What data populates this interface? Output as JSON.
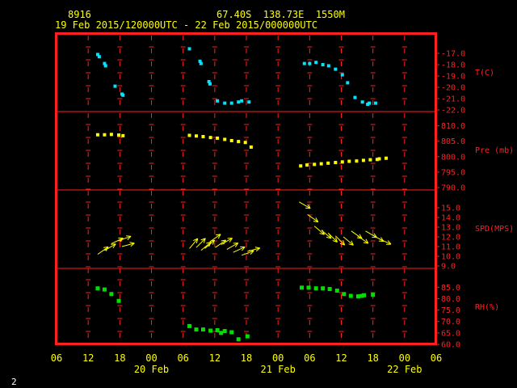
{
  "header": {
    "station": "8916",
    "location": "67.40S  138.73E  1550M",
    "period": "19 Feb 2015/120000UTC - 22 Feb 2015/000000UTC"
  },
  "footer": {
    "page": "2"
  },
  "colors": {
    "frame": "#ff2020",
    "temp": "#00e5ff",
    "pressure": "#ffff00",
    "wind": "#ffff00",
    "rh": "#00e000",
    "text": "#ffff00"
  },
  "chart_data": {
    "type": "scatter",
    "x_axis": {
      "unit": "hours from 19 Feb 06UTC",
      "range": [
        0,
        72
      ],
      "tick_labels": [
        "06",
        "12",
        "18",
        "00",
        "06",
        "12",
        "18",
        "00",
        "06",
        "12",
        "18",
        "00",
        "06"
      ],
      "date_labels": [
        {
          "label": "20 Feb",
          "hour": 18
        },
        {
          "label": "21 Feb",
          "hour": 42
        },
        {
          "label": "22 Feb",
          "hour": 66
        }
      ]
    },
    "panels": [
      {
        "key": "temp",
        "label": "T(C)",
        "color": "#00e5ff",
        "range": [
          -22,
          -16
        ],
        "ticks": [
          "-17.0",
          "-18.0",
          "-19.0",
          "-20.0",
          "-21.0",
          "-22.0"
        ],
        "points": [
          [
            7.8,
            -17.1
          ],
          [
            8.1,
            -17.3
          ],
          [
            9.1,
            -17.9
          ],
          [
            9.3,
            -18.1
          ],
          [
            11.1,
            -19.9
          ],
          [
            12.4,
            -20.6
          ],
          [
            12.6,
            -20.7
          ],
          [
            25.2,
            -16.6
          ],
          [
            27.2,
            -17.7
          ],
          [
            27.4,
            -17.9
          ],
          [
            28.9,
            -19.5
          ],
          [
            29.1,
            -19.7
          ],
          [
            30.5,
            -21.2
          ],
          [
            31.9,
            -21.4
          ],
          [
            33.2,
            -21.4
          ],
          [
            34.5,
            -21.3
          ],
          [
            35.1,
            -21.2
          ],
          [
            36.5,
            -21.3
          ],
          [
            47.0,
            -17.9
          ],
          [
            48.0,
            -17.9
          ],
          [
            49.2,
            -17.8
          ],
          [
            50.5,
            -18.0
          ],
          [
            51.6,
            -18.1
          ],
          [
            52.9,
            -18.4
          ],
          [
            54.2,
            -18.9
          ],
          [
            55.2,
            -19.6
          ],
          [
            56.6,
            -20.9
          ],
          [
            58.0,
            -21.3
          ],
          [
            59.0,
            -21.5
          ],
          [
            59.3,
            -21.4
          ],
          [
            60.5,
            -21.4
          ]
        ]
      },
      {
        "key": "pressure",
        "label": "Pre (mb)",
        "color": "#ffff00",
        "range": [
          790,
          812
        ],
        "ticks": [
          "810.0",
          "805.0",
          "800.0",
          "795.0",
          "790.0"
        ],
        "points": [
          [
            7.8,
            807.1
          ],
          [
            9.1,
            807.1
          ],
          [
            10.4,
            807.2
          ],
          [
            11.8,
            807.0
          ],
          [
            12.6,
            806.8
          ],
          [
            25.2,
            806.9
          ],
          [
            26.5,
            806.7
          ],
          [
            27.8,
            806.5
          ],
          [
            29.2,
            806.2
          ],
          [
            30.5,
            806.0
          ],
          [
            31.9,
            805.6
          ],
          [
            33.2,
            805.2
          ],
          [
            34.5,
            804.9
          ],
          [
            35.8,
            804.6
          ],
          [
            36.9,
            803.1
          ],
          [
            46.3,
            797.0
          ],
          [
            47.5,
            797.3
          ],
          [
            48.9,
            797.5
          ],
          [
            50.2,
            797.7
          ],
          [
            51.5,
            797.9
          ],
          [
            52.9,
            798.1
          ],
          [
            54.2,
            798.3
          ],
          [
            55.5,
            798.5
          ],
          [
            56.9,
            798.6
          ],
          [
            58.2,
            798.8
          ],
          [
            59.5,
            799.0
          ],
          [
            60.8,
            799.1
          ],
          [
            61.2,
            799.3
          ],
          [
            62.5,
            799.5
          ]
        ]
      },
      {
        "key": "wind",
        "label": "SPD(MPS)",
        "color": "#ffff00",
        "range": [
          9,
          16
        ],
        "ticks": [
          "15.0",
          "14.0",
          "13.0",
          "12.0",
          "11.0",
          "10.0",
          "9.0"
        ],
        "points": [
          [
            7.8,
            10.2,
            55
          ],
          [
            9.1,
            10.6,
            60
          ],
          [
            10.4,
            11.3,
            65
          ],
          [
            11.8,
            11.6,
            70
          ],
          [
            12.4,
            11.0,
            75
          ],
          [
            25.2,
            10.8,
            40
          ],
          [
            26.5,
            10.9,
            45
          ],
          [
            27.4,
            10.6,
            50
          ],
          [
            28.1,
            10.8,
            50
          ],
          [
            29.1,
            11.5,
            55
          ],
          [
            30.1,
            10.9,
            55
          ],
          [
            31.2,
            11.2,
            60
          ],
          [
            32.3,
            10.7,
            60
          ],
          [
            33.5,
            10.4,
            65
          ],
          [
            35.1,
            10.1,
            70
          ],
          [
            36.2,
            10.5,
            75
          ],
          [
            46.0,
            15.6,
            120
          ],
          [
            47.6,
            14.3,
            125
          ],
          [
            48.9,
            13.1,
            130
          ],
          [
            50.2,
            12.7,
            130
          ],
          [
            51.5,
            12.4,
            135
          ],
          [
            52.9,
            12.1,
            135
          ],
          [
            54.4,
            12.0,
            130
          ],
          [
            55.9,
            12.6,
            125
          ],
          [
            57.1,
            12.1,
            125
          ],
          [
            58.6,
            12.6,
            120
          ],
          [
            59.9,
            12.2,
            120
          ],
          [
            61.2,
            11.8,
            115
          ]
        ]
      },
      {
        "key": "rh",
        "label": "RH(%)",
        "color": "#00e000",
        "range": [
          60,
          89
        ],
        "ticks": [
          "85.0",
          "80.0",
          "75.0",
          "70.0",
          "65.0",
          "60.0"
        ],
        "points": [
          [
            7.8,
            84.5
          ],
          [
            9.1,
            84.0
          ],
          [
            10.4,
            82.0
          ],
          [
            11.8,
            79.0
          ],
          [
            25.2,
            68.0
          ],
          [
            26.5,
            66.5
          ],
          [
            27.8,
            66.5
          ],
          [
            29.2,
            66.0
          ],
          [
            30.5,
            66.2
          ],
          [
            31.2,
            65.0
          ],
          [
            31.9,
            65.8
          ],
          [
            33.2,
            65.3
          ],
          [
            34.5,
            62.2
          ],
          [
            36.2,
            63.5
          ],
          [
            46.5,
            84.8
          ],
          [
            47.8,
            84.8
          ],
          [
            49.2,
            84.5
          ],
          [
            50.5,
            84.5
          ],
          [
            51.8,
            84.2
          ],
          [
            53.2,
            83.5
          ],
          [
            54.5,
            82.0
          ],
          [
            55.8,
            81.2
          ],
          [
            57.2,
            81.0
          ],
          [
            57.9,
            81.2
          ],
          [
            58.3,
            81.5
          ],
          [
            60.0,
            81.7
          ]
        ]
      }
    ]
  }
}
